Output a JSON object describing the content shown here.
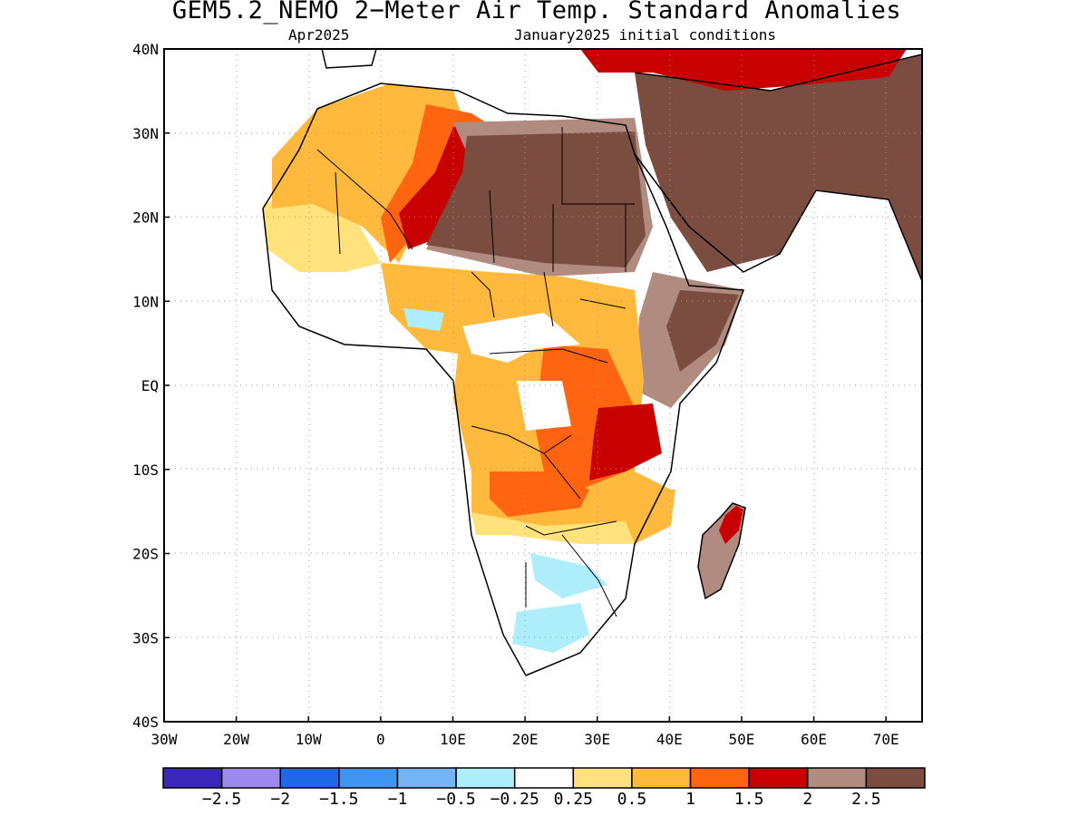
{
  "title": "GEM5.2_NEMO 2−Meter Air Temp. Standard Anomalies",
  "valid_month": "Apr2025",
  "init_label": "January2025 initial conditions",
  "map": {
    "region": "Africa",
    "lon_range": [
      -30,
      75
    ],
    "lat_range": [
      -40,
      40
    ],
    "x_ticks": [
      "30W",
      "20W",
      "10W",
      "0",
      "10E",
      "20E",
      "30E",
      "40E",
      "50E",
      "60E",
      "70E"
    ],
    "y_ticks": [
      "40N",
      "30N",
      "20N",
      "10N",
      "EQ",
      "10S",
      "20S",
      "30S",
      "40S"
    ],
    "grid": "dotted"
  },
  "colorbar": {
    "colors": [
      "#3b27b9",
      "#9b89f0",
      "#1f68e6",
      "#3f95f2",
      "#75b5f7",
      "#aeeefb",
      "#ffffff",
      "#ffe27c",
      "#ffb93c",
      "#ff6410",
      "#c90002",
      "#b18b80",
      "#7a4d40"
    ],
    "labels": [
      "−2.5",
      "−2",
      "−1.5",
      "−1",
      "−0.5",
      "−0.25",
      "0.25",
      "0.5",
      "1",
      "1.5",
      "2",
      "2.5"
    ]
  }
}
